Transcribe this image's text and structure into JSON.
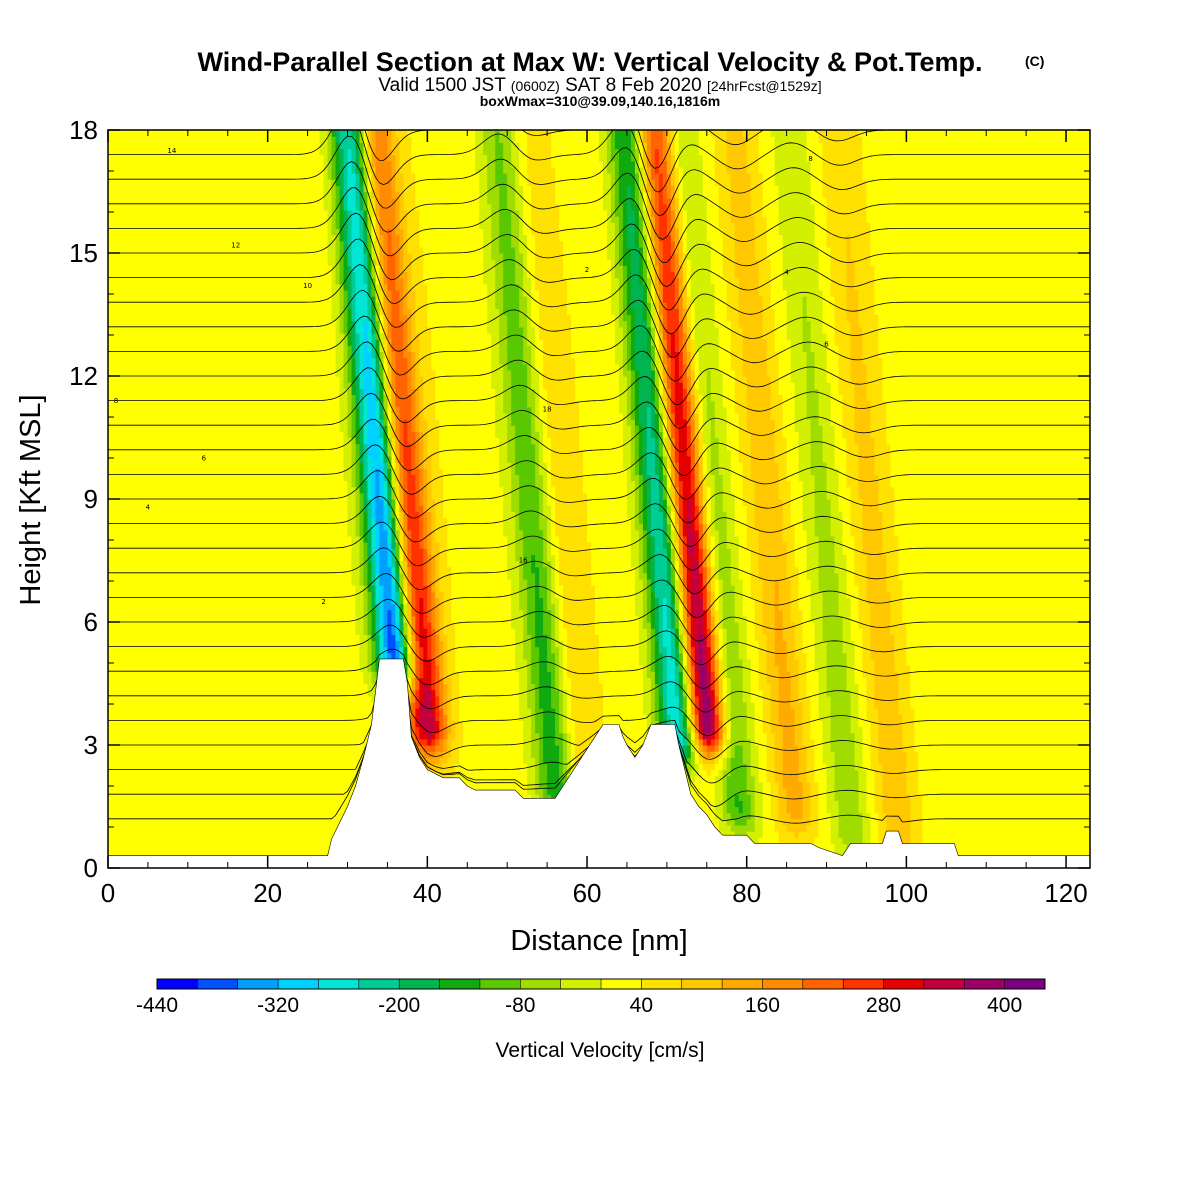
{
  "title": {
    "main": "Wind-Parallel Section at Max W: Vertical Velocity & Pot.Temp.",
    "copyright": "(C)",
    "line2_a": "Valid 1500 JST",
    "line2_b": "(0600Z)",
    "line2_c": "SAT 8 Feb 2020",
    "line2_d": "[24hrFcst@1529z]",
    "line3": "boxWmax=310@39.09,140.16,1816m"
  },
  "chart_data": {
    "type": "heatmap",
    "title": "Wind-Parallel Section at Max W: Vertical Velocity & Pot.Temp.",
    "xlabel": "Distance [nm]",
    "ylabel": "Height [Kft MSL]",
    "xlim": [
      0,
      123
    ],
    "ylim": [
      0,
      18
    ],
    "xticks": [
      "0",
      "20",
      "40",
      "60",
      "80",
      "100",
      "120"
    ],
    "yticks": [
      "0",
      "3",
      "6",
      "9",
      "12",
      "15",
      "18"
    ],
    "colorbar": {
      "label": "Vertical Velocity [cm/s]",
      "min": -440,
      "max": 440,
      "step": 40,
      "tick_labels": [
        "-440",
        "-320",
        "-200",
        "-80",
        "40",
        "160",
        "280",
        "400"
      ],
      "colors": [
        "#0000ff",
        "#0050ff",
        "#00a0ff",
        "#00d2ff",
        "#00e6d2",
        "#00cd96",
        "#00b450",
        "#10aa10",
        "#5ac800",
        "#a0dc00",
        "#d2f000",
        "#ffff00",
        "#ffe100",
        "#ffc800",
        "#ffaa00",
        "#ff8c00",
        "#ff6400",
        "#ff3200",
        "#e60000",
        "#c3003c",
        "#9b0064",
        "#780082"
      ]
    },
    "terrain_kft": [
      [
        0,
        0.3
      ],
      [
        27.5,
        0.3
      ],
      [
        28,
        0.7
      ],
      [
        29,
        1.1
      ],
      [
        30,
        1.5
      ],
      [
        31,
        2
      ],
      [
        32,
        2.7
      ],
      [
        33,
        3.5
      ],
      [
        33.5,
        4.3
      ],
      [
        34,
        5.1
      ],
      [
        37,
        5.1
      ],
      [
        37.5,
        4.5
      ],
      [
        38,
        3.2
      ],
      [
        39,
        2.7
      ],
      [
        40,
        2.4
      ],
      [
        42,
        2.2
      ],
      [
        44,
        2.2
      ],
      [
        45,
        2.0
      ],
      [
        46,
        1.9
      ],
      [
        51,
        1.9
      ],
      [
        52,
        1.7
      ],
      [
        56,
        1.7
      ],
      [
        57,
        2.0
      ],
      [
        58,
        2.3
      ],
      [
        59,
        2.6
      ],
      [
        60,
        2.9
      ],
      [
        61,
        3.2
      ],
      [
        62,
        3.5
      ],
      [
        64,
        3.5
      ],
      [
        64.5,
        3.2
      ],
      [
        65,
        3.0
      ],
      [
        66,
        2.7
      ],
      [
        67,
        3.0
      ],
      [
        68,
        3.5
      ],
      [
        71,
        3.5
      ],
      [
        71.5,
        3.0
      ],
      [
        72,
        2.6
      ],
      [
        73,
        1.8
      ],
      [
        74,
        1.5
      ],
      [
        75,
        1.3
      ],
      [
        76,
        1.0
      ],
      [
        77,
        0.8
      ],
      [
        80,
        0.8
      ],
      [
        81,
        0.6
      ],
      [
        88,
        0.6
      ],
      [
        89,
        0.5
      ],
      [
        92,
        0.3
      ],
      [
        93,
        0.6
      ],
      [
        97,
        0.6
      ],
      [
        97.5,
        0.9
      ],
      [
        99,
        0.9
      ],
      [
        99.5,
        0.6
      ],
      [
        106,
        0.6
      ],
      [
        106.5,
        0.3
      ],
      [
        123,
        0.3
      ]
    ],
    "vertical_velocity_cells": [
      {
        "center_x": 36,
        "base_kft": 5.1,
        "tilt_nm_per_kft": -0.45,
        "extreme_cm_s": -440
      },
      {
        "center_x": 40,
        "base_kft": 3.5,
        "tilt_nm_per_kft": -0.45,
        "extreme_cm_s": 330
      },
      {
        "center_x": 56,
        "base_kft": 2.0,
        "tilt_nm_per_kft": -0.45,
        "extreme_cm_s": -180
      },
      {
        "center_x": 60,
        "base_kft": 2.0,
        "tilt_nm_per_kft": -0.45,
        "extreme_cm_s": 60
      },
      {
        "center_x": 71.5,
        "base_kft": 3.2,
        "tilt_nm_per_kft": -0.45,
        "extreme_cm_s": -330
      },
      {
        "center_x": 75,
        "base_kft": 3.5,
        "tilt_nm_per_kft": -0.45,
        "extreme_cm_s": 420
      },
      {
        "center_x": 79,
        "base_kft": 1.5,
        "tilt_nm_per_kft": -0.45,
        "extreme_cm_s": -150
      },
      {
        "center_x": 86,
        "base_kft": 1.5,
        "tilt_nm_per_kft": -0.45,
        "extreme_cm_s": 120
      },
      {
        "center_x": 93,
        "base_kft": 1.0,
        "tilt_nm_per_kft": -0.45,
        "extreme_cm_s": -100
      },
      {
        "center_x": 99,
        "base_kft": 1.0,
        "tilt_nm_per_kft": -0.45,
        "extreme_cm_s": 90
      }
    ],
    "theta_contour_labels": [
      "2",
      "4",
      "6",
      "8",
      "10",
      "12",
      "14",
      "16",
      "18"
    ]
  }
}
